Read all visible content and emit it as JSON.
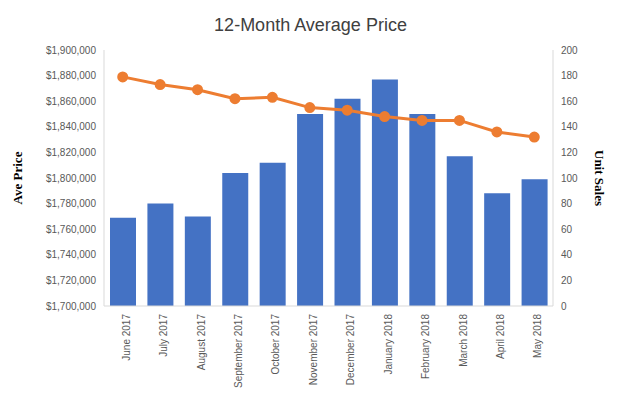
{
  "chart_data": {
    "type": "combo",
    "title": "12-Month Average Price",
    "categories": [
      "June 2017",
      "July 2017",
      "August 2017",
      "September 2017",
      "October 2017",
      "November 2017",
      "December 2017",
      "January 2018",
      "February 2018",
      "March 2018",
      "April 2018",
      "May 2018"
    ],
    "ylabel": "Ave Price",
    "y2label": "Unit Sales",
    "series": [
      {
        "name": "Unit Sales",
        "type": "bar",
        "axis": "y2",
        "color": "#4472c4",
        "values": [
          69,
          80,
          70,
          104,
          112,
          150,
          162,
          177,
          150,
          117,
          88,
          99
        ]
      },
      {
        "name": "Ave Price",
        "type": "line",
        "color": "#ed7d31",
        "marker": "circle",
        "values": [
          1879000,
          1873000,
          1869000,
          1862000,
          1863000,
          1855000,
          1853000,
          1848000,
          1845000,
          1845000,
          1836000,
          1832000
        ]
      }
    ],
    "ylim": [
      1700000,
      1900000
    ],
    "yticks": [
      {
        "value": 1700000,
        "label": "$1,700,000"
      },
      {
        "value": 1720000,
        "label": "$1,720,000"
      },
      {
        "value": 1740000,
        "label": "$1,740,000"
      },
      {
        "value": 1760000,
        "label": "$1,760,000"
      },
      {
        "value": 1780000,
        "label": "$1,780,000"
      },
      {
        "value": 1800000,
        "label": "$1,800,000"
      },
      {
        "value": 1820000,
        "label": "$1,820,000"
      },
      {
        "value": 1840000,
        "label": "$1,840,000"
      },
      {
        "value": 1860000,
        "label": "$1,860,000"
      },
      {
        "value": 1880000,
        "label": "$1,880,000"
      },
      {
        "value": 1900000,
        "label": "$1,900,000"
      }
    ],
    "y2lim": [
      0,
      200
    ],
    "y2ticks": [
      0,
      20,
      40,
      60,
      80,
      100,
      120,
      140,
      160,
      180,
      200
    ],
    "grid": false
  }
}
